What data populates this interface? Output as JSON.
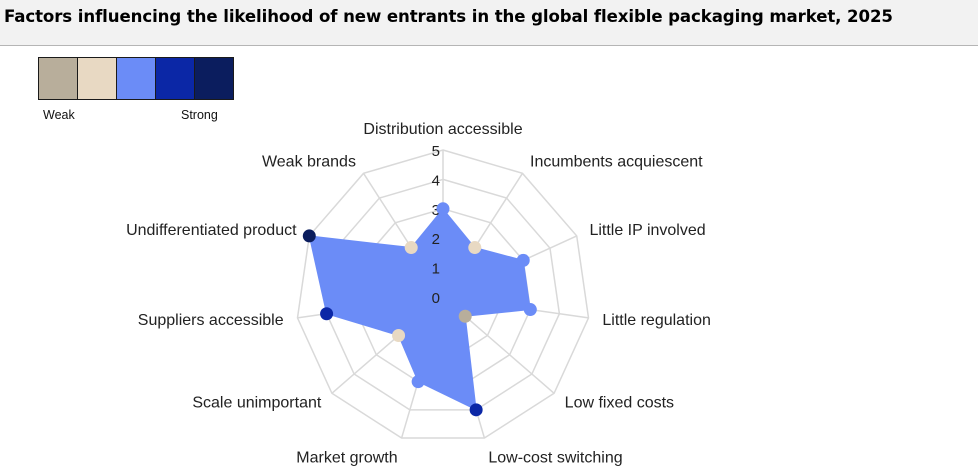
{
  "title": "Factors influencing the likelihood of new entrants in the global flexible packaging market, 2025",
  "legend": {
    "weak_label": "Weak",
    "strong_label": "Strong",
    "scale_colors": [
      "#b8ae9b",
      "#e8d9c3",
      "#6b8cf7",
      "#0b27a6",
      "#0b1d5e"
    ]
  },
  "chart_data": {
    "type": "radar",
    "title": "Factors influencing the likelihood of new entrants in the global flexible packaging market, 2025",
    "categories": [
      "Distribution accessible",
      "Incumbents acquiescent",
      "Little IP involved",
      "Little regulation",
      "Low fixed costs",
      "Low-cost switching",
      "Market growth",
      "Scale unimportant",
      "Suppliers accessible",
      "Undifferentiated product",
      "Weak brands"
    ],
    "values": [
      3,
      2,
      3,
      3,
      1,
      4,
      3,
      2,
      4,
      5,
      2
    ],
    "radial_ticks": [
      0,
      1,
      2,
      3,
      4,
      5
    ],
    "range": [
      0,
      5
    ],
    "fill_color": "#6b8cf7",
    "level_colors": {
      "1": "#b8ae9b",
      "2": "#e8d9c3",
      "3": "#6b8cf7",
      "4": "#0b27a6",
      "5": "#0b1d5e"
    },
    "grid": true
  }
}
